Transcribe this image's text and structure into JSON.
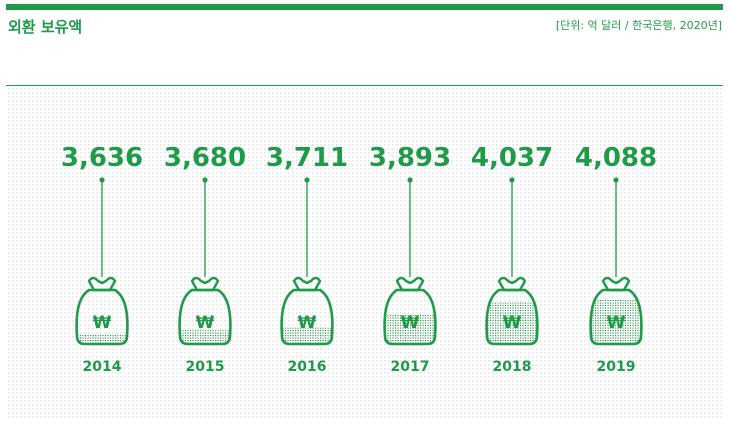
{
  "header": {
    "title": "외환 보유액",
    "unit_note": "[단위: 억 달러 / 한국은행, 2020년]"
  },
  "colors": {
    "accent": "#1f9a48",
    "dots": "#e6e6e6"
  },
  "bag_symbol": "₩",
  "chart_data": {
    "type": "bar",
    "categories": [
      "2014",
      "2015",
      "2016",
      "2017",
      "2018",
      "2019"
    ],
    "values": [
      3636,
      3680,
      3711,
      3893,
      4037,
      4088
    ],
    "value_labels": [
      "3,636",
      "3,680",
      "3,711",
      "3,893",
      "4,037",
      "4,088"
    ],
    "title": "",
    "xlabel": "",
    "ylabel": ""
  }
}
